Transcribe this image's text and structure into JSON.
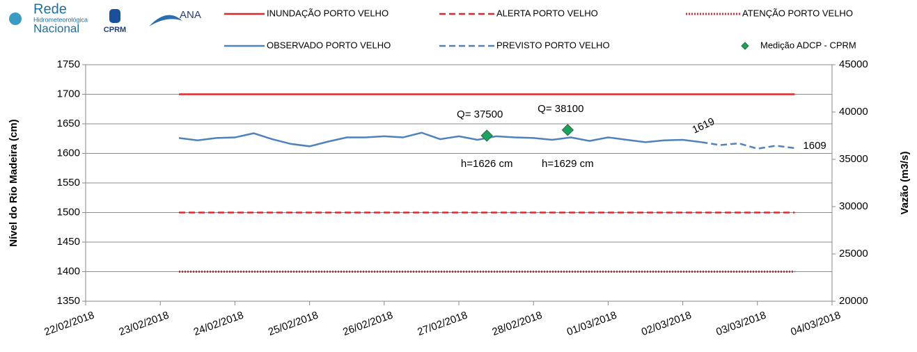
{
  "header": {
    "logo1_line1": "Rede",
    "logo1_line2": "Hidrometeorológica",
    "logo1_line3": "Nacional",
    "logo2": "CPRM",
    "logo3": "ANA"
  },
  "chart_data": {
    "type": "line",
    "y_label": "Nível do Rio Madeira (cm)",
    "y2_label": "Vazão (m3/s)",
    "xlim": [
      "2018-02-22T00:00",
      "2018-03-04T00:00"
    ],
    "xticks": [
      {
        "value": "2018-02-22T00:00",
        "label": "22/02/2018"
      },
      {
        "value": "2018-02-23T00:00",
        "label": "23/02/2018"
      },
      {
        "value": "2018-02-24T00:00",
        "label": "24/02/2018"
      },
      {
        "value": "2018-02-25T00:00",
        "label": "25/02/2018"
      },
      {
        "value": "2018-02-26T00:00",
        "label": "26/02/2018"
      },
      {
        "value": "2018-02-27T00:00",
        "label": "27/02/2018"
      },
      {
        "value": "2018-02-28T00:00",
        "label": "28/02/2018"
      },
      {
        "value": "2018-03-01T00:00",
        "label": "01/03/2018"
      },
      {
        "value": "2018-03-02T00:00",
        "label": "02/03/2018"
      },
      {
        "value": "2018-03-03T00:00",
        "label": "03/03/2018"
      },
      {
        "value": "2018-03-04T00:00",
        "label": "04/03/2018"
      }
    ],
    "ylim": [
      1350,
      1750
    ],
    "yticks": [
      1350,
      1400,
      1450,
      1500,
      1550,
      1600,
      1650,
      1700,
      1750
    ],
    "y2lim": [
      20000,
      45000
    ],
    "y2ticks": [
      20000,
      25000,
      30000,
      35000,
      40000,
      45000
    ],
    "grid": true,
    "series": [
      {
        "name": "INUNDAÇÃO PORTO VELHO",
        "color": "#e3262b",
        "style": "solid",
        "x": [
          "2018-02-23T06:00",
          "2018-03-03T12:00"
        ],
        "values": [
          1700,
          1700
        ]
      },
      {
        "name": "ALERTA PORTO VELHO",
        "color": "#e3262b",
        "style": "dashed",
        "x": [
          "2018-02-23T06:00",
          "2018-03-03T12:00"
        ],
        "values": [
          1500,
          1500
        ]
      },
      {
        "name": "ATENÇÃO PORTO VELHO",
        "color": "#e3262b",
        "style": "dotted",
        "x": [
          "2018-02-23T06:00",
          "2018-03-03T12:00"
        ],
        "values": [
          1400,
          1400
        ]
      },
      {
        "name": "OBSERVADO PORTO VELHO",
        "color": "#4f81bd",
        "style": "solid",
        "x": [
          "2018-02-23T06:00",
          "2018-02-23T12:00",
          "2018-02-23T18:00",
          "2018-02-24T00:00",
          "2018-02-24T06:00",
          "2018-02-24T12:00",
          "2018-02-24T18:00",
          "2018-02-25T00:00",
          "2018-02-25T06:00",
          "2018-02-25T12:00",
          "2018-02-25T18:00",
          "2018-02-26T00:00",
          "2018-02-26T06:00",
          "2018-02-26T12:00",
          "2018-02-26T18:00",
          "2018-02-27T00:00",
          "2018-02-27T06:00",
          "2018-02-27T12:00",
          "2018-02-27T18:00",
          "2018-02-28T00:00",
          "2018-02-28T06:00",
          "2018-02-28T12:00",
          "2018-02-28T18:00",
          "2018-03-01T00:00",
          "2018-03-01T06:00",
          "2018-03-01T12:00",
          "2018-03-01T18:00",
          "2018-03-02T00:00",
          "2018-03-02T06:00"
        ],
        "values": [
          1626,
          1622,
          1626,
          1627,
          1634,
          1624,
          1616,
          1612,
          1620,
          1627,
          1627,
          1629,
          1627,
          1635,
          1624,
          1629,
          1623,
          1629,
          1627,
          1626,
          1623,
          1627,
          1621,
          1627,
          1623,
          1619,
          1622,
          1623,
          1619
        ]
      },
      {
        "name": "PREVISTO PORTO VELHO",
        "color": "#4f81bd",
        "style": "dashed",
        "x": [
          "2018-03-02T06:00",
          "2018-03-02T12:00",
          "2018-03-02T18:00",
          "2018-03-03T00:00",
          "2018-03-03T06:00",
          "2018-03-03T12:00"
        ],
        "values": [
          1619,
          1614,
          1617,
          1608,
          1613,
          1609
        ],
        "value_labels": [
          "1619",
          null,
          null,
          null,
          null,
          "1609"
        ]
      },
      {
        "name": "Medição ADCP - CPRM",
        "color": "#1aa260",
        "style": "marker",
        "axis": "y2",
        "x": [
          "2018-02-27T09:00",
          "2018-02-28T11:00"
        ],
        "values": [
          37500,
          38100
        ],
        "value_labels": [
          "Q= 37500",
          "Q= 38100"
        ]
      }
    ],
    "annotations": [
      {
        "text": "h=1626 cm",
        "x": "2018-02-27T09:00"
      },
      {
        "text": "h=1629 cm",
        "x": "2018-02-28T11:00"
      }
    ]
  }
}
